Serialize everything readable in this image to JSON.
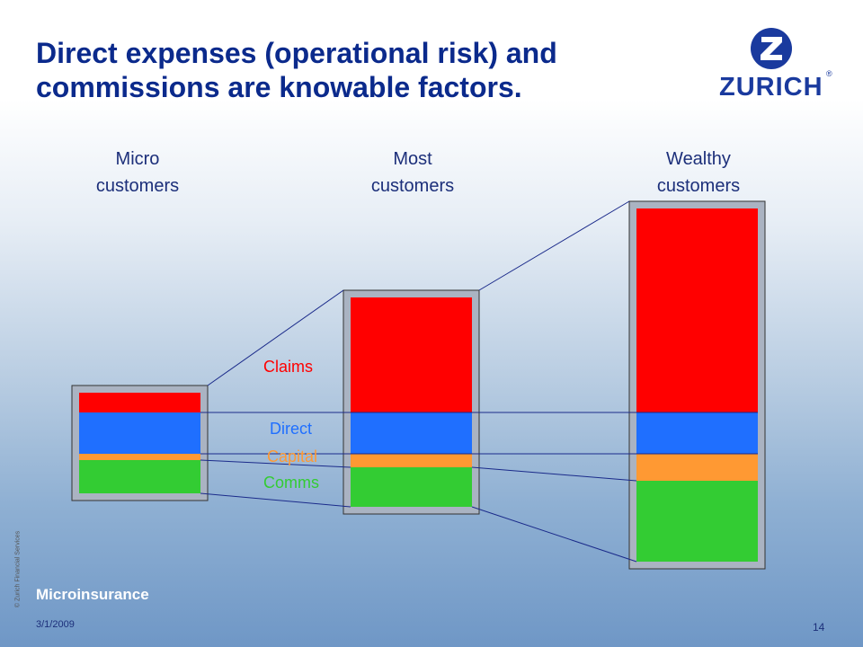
{
  "slide": {
    "title_line1": "Direct expenses (operational risk) and",
    "title_line2": "commissions are knowable factors.",
    "logo_text": "ZURICH",
    "logo_reg": "®",
    "footer_title": "Microinsurance",
    "footer_date": "3/1/2009",
    "page_number": "14",
    "copyright": "© Zurich Financial Services"
  },
  "columns": [
    {
      "line1": "Micro",
      "line2": "customers"
    },
    {
      "line1": "Most",
      "line2": "customers"
    },
    {
      "line1": "Wealthy",
      "line2": "customers"
    }
  ],
  "segments": [
    {
      "key": "claims",
      "label": "Claims",
      "color": "#ff0000"
    },
    {
      "key": "direct",
      "label": "Direct",
      "color": "#1f6fff"
    },
    {
      "key": "capital",
      "label": "Capital",
      "color": "#ff9933"
    },
    {
      "key": "comms",
      "label": "Comms",
      "color": "#33cc33"
    }
  ],
  "chart_data": {
    "type": "bar",
    "stacked": true,
    "categories": [
      "Micro customers",
      "Most customers",
      "Wealthy customers"
    ],
    "series": [
      {
        "name": "Comms",
        "values": [
          37,
          44,
          90
        ]
      },
      {
        "name": "Capital",
        "values": [
          7,
          15,
          30
        ]
      },
      {
        "name": "Direct",
        "values": [
          46,
          46,
          46
        ]
      },
      {
        "name": "Claims",
        "values": [
          22,
          128,
          227
        ]
      }
    ],
    "frame_color": "#aab3c2",
    "connector_color": "#1a2a8a"
  }
}
